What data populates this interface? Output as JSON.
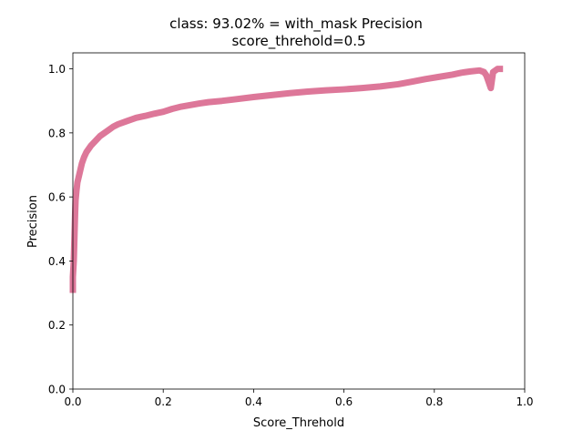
{
  "chart_data": {
    "type": "line",
    "title": "class: 93.02% = with_mask Precision",
    "subtitle": "score_threhold=0.5",
    "xlabel": "Score_Threhold",
    "ylabel": "Precision",
    "xlim": [
      0.0,
      1.0
    ],
    "ylim": [
      0.0,
      1.05
    ],
    "xticks": [
      "0.0",
      "0.2",
      "0.4",
      "0.6",
      "0.8",
      "1.0"
    ],
    "yticks": [
      "0.0",
      "0.2",
      "0.4",
      "0.6",
      "0.8",
      "1.0"
    ],
    "grid": false,
    "legend": "none",
    "series": [
      {
        "color": "#db7093",
        "points": [
          [
            0.0,
            0.31
          ],
          [
            0.0,
            0.35
          ],
          [
            0.002,
            0.4
          ],
          [
            0.003,
            0.45
          ],
          [
            0.004,
            0.5
          ],
          [
            0.005,
            0.55
          ],
          [
            0.006,
            0.59
          ],
          [
            0.008,
            0.62
          ],
          [
            0.01,
            0.645
          ],
          [
            0.015,
            0.675
          ],
          [
            0.02,
            0.705
          ],
          [
            0.025,
            0.725
          ],
          [
            0.03,
            0.74
          ],
          [
            0.04,
            0.76
          ],
          [
            0.05,
            0.775
          ],
          [
            0.06,
            0.79
          ],
          [
            0.07,
            0.8
          ],
          [
            0.08,
            0.81
          ],
          [
            0.09,
            0.82
          ],
          [
            0.1,
            0.827
          ],
          [
            0.12,
            0.837
          ],
          [
            0.14,
            0.847
          ],
          [
            0.16,
            0.853
          ],
          [
            0.18,
            0.86
          ],
          [
            0.2,
            0.866
          ],
          [
            0.22,
            0.875
          ],
          [
            0.24,
            0.882
          ],
          [
            0.26,
            0.887
          ],
          [
            0.28,
            0.892
          ],
          [
            0.3,
            0.896
          ],
          [
            0.33,
            0.9
          ],
          [
            0.36,
            0.905
          ],
          [
            0.4,
            0.912
          ],
          [
            0.44,
            0.918
          ],
          [
            0.48,
            0.924
          ],
          [
            0.52,
            0.929
          ],
          [
            0.56,
            0.933
          ],
          [
            0.6,
            0.936
          ],
          [
            0.64,
            0.94
          ],
          [
            0.68,
            0.945
          ],
          [
            0.72,
            0.952
          ],
          [
            0.75,
            0.96
          ],
          [
            0.78,
            0.968
          ],
          [
            0.81,
            0.975
          ],
          [
            0.84,
            0.982
          ],
          [
            0.86,
            0.988
          ],
          [
            0.88,
            0.992
          ],
          [
            0.9,
            0.995
          ],
          [
            0.91,
            0.99
          ],
          [
            0.915,
            0.98
          ],
          [
            0.92,
            0.96
          ],
          [
            0.925,
            0.94
          ],
          [
            0.93,
            0.99
          ],
          [
            0.94,
            1.0
          ],
          [
            0.945,
            1.0
          ]
        ]
      }
    ]
  }
}
